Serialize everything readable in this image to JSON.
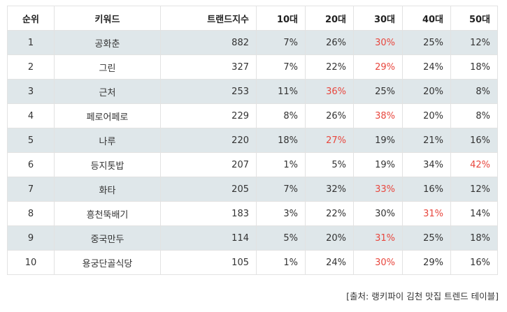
{
  "table": {
    "headers": [
      "순위",
      "키워드",
      "트랜드지수",
      "10대",
      "20대",
      "30대",
      "40대",
      "50대"
    ],
    "highlight_color": "#e8473e",
    "shaded_row_color": "#dfe7ea",
    "rows": [
      {
        "rank": "1",
        "keyword": "공화춘",
        "trend": "882",
        "a10": "7%",
        "a20": "26%",
        "a30": "30%",
        "a40": "25%",
        "a50": "12%",
        "highlight": "a30"
      },
      {
        "rank": "2",
        "keyword": "그린",
        "trend": "327",
        "a10": "7%",
        "a20": "22%",
        "a30": "29%",
        "a40": "24%",
        "a50": "18%",
        "highlight": "a30"
      },
      {
        "rank": "3",
        "keyword": "근처",
        "trend": "253",
        "a10": "11%",
        "a20": "36%",
        "a30": "25%",
        "a40": "20%",
        "a50": "8%",
        "highlight": "a20"
      },
      {
        "rank": "4",
        "keyword": "페로어페로",
        "trend": "229",
        "a10": "8%",
        "a20": "26%",
        "a30": "38%",
        "a40": "20%",
        "a50": "8%",
        "highlight": "a30"
      },
      {
        "rank": "5",
        "keyword": "나루",
        "trend": "220",
        "a10": "18%",
        "a20": "27%",
        "a30": "19%",
        "a40": "21%",
        "a50": "16%",
        "highlight": "a20"
      },
      {
        "rank": "6",
        "keyword": "등지톳밥",
        "trend": "207",
        "a10": "1%",
        "a20": "5%",
        "a30": "19%",
        "a40": "34%",
        "a50": "42%",
        "highlight": "a50"
      },
      {
        "rank": "7",
        "keyword": "화타",
        "trend": "205",
        "a10": "7%",
        "a20": "32%",
        "a30": "33%",
        "a40": "16%",
        "a50": "12%",
        "highlight": "a30"
      },
      {
        "rank": "8",
        "keyword": "흥천뚝배기",
        "trend": "183",
        "a10": "3%",
        "a20": "22%",
        "a30": "30%",
        "a40": "31%",
        "a50": "14%",
        "highlight": "a40"
      },
      {
        "rank": "9",
        "keyword": "중국만두",
        "trend": "114",
        "a10": "5%",
        "a20": "20%",
        "a30": "31%",
        "a40": "25%",
        "a50": "18%",
        "highlight": "a30"
      },
      {
        "rank": "10",
        "keyword": "용궁단골식당",
        "trend": "105",
        "a10": "1%",
        "a20": "24%",
        "a30": "30%",
        "a40": "29%",
        "a50": "16%",
        "highlight": "a30"
      }
    ]
  },
  "source": "[출처: 랭키파이 김천 맛집 트렌드 테이블]"
}
